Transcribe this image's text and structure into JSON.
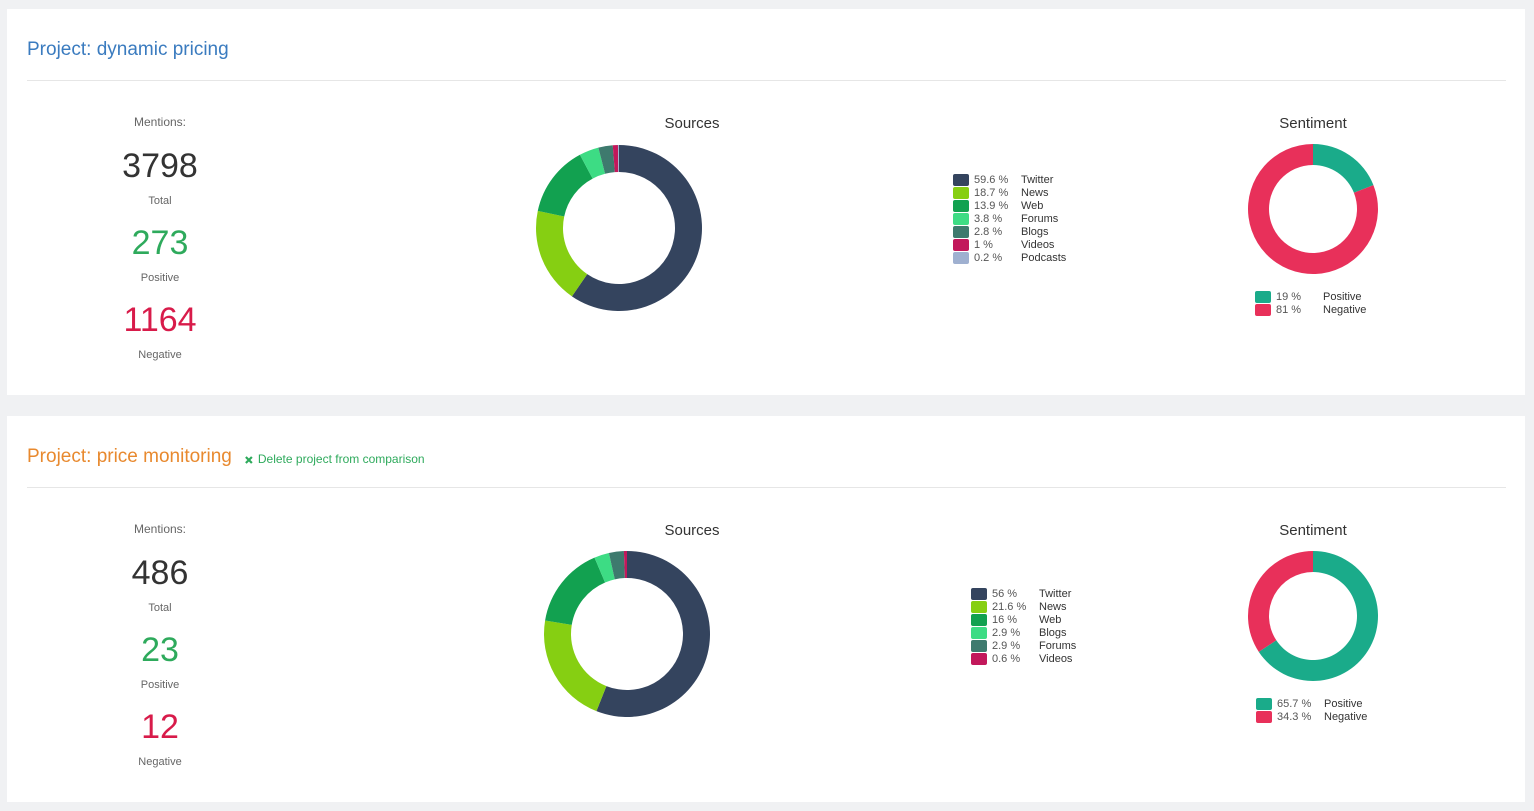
{
  "projects": [
    {
      "title": "Project: dynamic pricing",
      "mentions": {
        "label": "Mentions:",
        "total": 3798,
        "total_label": "Total",
        "positive": 273,
        "positive_label": "Positive",
        "negative": 1164,
        "negative_label": "Negative"
      },
      "chart_data": [
        {
          "type": "pie",
          "title": "Sources",
          "categories": [
            "Twitter",
            "News",
            "Web",
            "Forums",
            "Blogs",
            "Videos",
            "Podcasts"
          ],
          "values": [
            59.6,
            18.7,
            13.9,
            3.8,
            2.8,
            1,
            0.2
          ],
          "value_labels": [
            "59.6 %",
            "18.7 %",
            "13.9 %",
            "3.8 %",
            "2.8 %",
            "1 %",
            "0.2 %"
          ],
          "colors": [
            "#34445e",
            "#86cf12",
            "#12a150",
            "#3ddc84",
            "#3e7a6e",
            "#c2185b",
            "#9fb0d0"
          ]
        },
        {
          "type": "pie",
          "title": "Sentiment",
          "categories": [
            "Positive",
            "Negative"
          ],
          "values": [
            19,
            81
          ],
          "value_labels": [
            "19 %",
            "81 %"
          ],
          "colors": [
            "#1aab8a",
            "#e8305a"
          ]
        }
      ]
    },
    {
      "title": "Project: price monitoring",
      "delete_link": "Delete project from comparison",
      "mentions": {
        "label": "Mentions:",
        "total": 486,
        "total_label": "Total",
        "positive": 23,
        "positive_label": "Positive",
        "negative": 12,
        "negative_label": "Negative"
      },
      "chart_data": [
        {
          "type": "pie",
          "title": "Sources",
          "categories": [
            "Twitter",
            "News",
            "Web",
            "Blogs",
            "Forums",
            "Videos"
          ],
          "values": [
            56,
            21.6,
            16,
            2.9,
            2.9,
            0.6
          ],
          "value_labels": [
            "56 %",
            "21.6 %",
            "16 %",
            "2.9 %",
            "2.9 %",
            "0.6 %"
          ],
          "colors": [
            "#34445e",
            "#86cf12",
            "#12a150",
            "#3ddc84",
            "#3e7a6e",
            "#c2185b"
          ]
        },
        {
          "type": "pie",
          "title": "Sentiment",
          "categories": [
            "Positive",
            "Negative"
          ],
          "values": [
            65.7,
            34.3
          ],
          "value_labels": [
            "65.7 %",
            "34.3 %"
          ],
          "colors": [
            "#1aab8a",
            "#e8305a"
          ]
        }
      ]
    }
  ]
}
